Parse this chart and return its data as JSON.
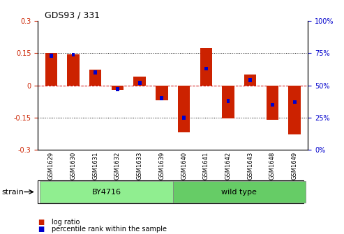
{
  "title": "GDS93 / 331",
  "samples": [
    "GSM1629",
    "GSM1630",
    "GSM1631",
    "GSM1632",
    "GSM1633",
    "GSM1639",
    "GSM1640",
    "GSM1641",
    "GSM1642",
    "GSM1643",
    "GSM1648",
    "GSM1649"
  ],
  "log_ratio": [
    0.15,
    0.145,
    0.075,
    -0.02,
    0.04,
    -0.07,
    -0.22,
    0.175,
    -0.155,
    0.05,
    -0.16,
    -0.23
  ],
  "percentile_rank": [
    73,
    74,
    60,
    47,
    52,
    40,
    25,
    63,
    38,
    54,
    35,
    37
  ],
  "strain_groups": [
    {
      "label": "BY4716",
      "start": 0,
      "end": 5,
      "color": "#90EE90"
    },
    {
      "label": "wild type",
      "start": 6,
      "end": 11,
      "color": "#66CC66"
    }
  ],
  "red_bar_width": 0.55,
  "blue_bar_width": 0.15,
  "ylim": [
    -0.3,
    0.3
  ],
  "y2lim": [
    0,
    100
  ],
  "yticks": [
    -0.3,
    -0.15,
    0.0,
    0.15,
    0.3
  ],
  "ytick_labels": [
    "-0.3",
    "-0.15",
    "0",
    "0.15",
    "0.3"
  ],
  "y2ticks": [
    0,
    25,
    50,
    75,
    100
  ],
  "y2tick_labels": [
    "0",
    "25",
    "50",
    "75",
    "100"
  ],
  "hlines_dotted": [
    0.15,
    -0.15
  ],
  "hline_zero": 0.0,
  "red_color": "#CC2200",
  "blue_color": "#0000CC",
  "zero_line_color": "#CC0000",
  "bg_color": "#FFFFFF",
  "tick_color_left": "#CC2200",
  "tick_color_right": "#0000CC",
  "legend_items": [
    "log ratio",
    "percentile rank within the sample"
  ],
  "strain_label": "strain",
  "by4716_color": "#90EE90",
  "wildtype_color": "#66CC66"
}
